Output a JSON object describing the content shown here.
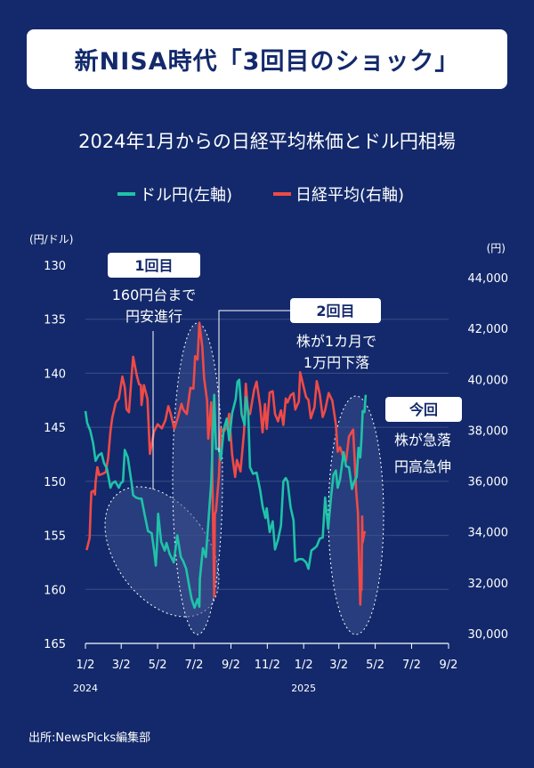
{
  "header": {
    "title": "新NISA時代「3回目のショック」",
    "subtitle": "2024年1月からの日経平均株価とドル円相場"
  },
  "source": "出所:NewsPicks編集部",
  "colors": {
    "background": "#13296b",
    "usdjpy": "#1fc2a8",
    "nikkei": "#ef4a47",
    "gridline": "#3c4f88",
    "callout_bg": "#ffffff",
    "callout_text": "#13296b"
  },
  "chart_data": {
    "type": "line",
    "title": "2024年1月からの日経平均株価とドル円相場",
    "left_unit": "(円/ドル)",
    "right_unit": "(円)",
    "left_axis": {
      "inverted": true,
      "ylim": [
        130,
        165
      ],
      "ticks": [
        "130",
        "135",
        "140",
        "145",
        "150",
        "155",
        "160",
        "165"
      ]
    },
    "right_axis": {
      "ylim": [
        30000,
        44000
      ],
      "ticks": [
        "30,000",
        "32,000",
        "34,000",
        "36,000",
        "38,000",
        "40,000",
        "42,000",
        "44,000"
      ]
    },
    "x_ticks": [
      "1/2",
      "3/2",
      "5/2",
      "7/2",
      "9/2",
      "11/2",
      "1/2",
      "3/2",
      "5/2",
      "7/2",
      "9/2"
    ],
    "year_labels": [
      "2024",
      "2025"
    ],
    "series": [
      {
        "name": "ドル円(左軸)",
        "axis": "left",
        "points": [
          [
            "2024-01-02",
            143.5
          ],
          [
            "2024-01-05",
            144.6
          ],
          [
            "2024-01-10",
            145.3
          ],
          [
            "2024-01-15",
            146.5
          ],
          [
            "2024-01-19",
            148.1
          ],
          [
            "2024-01-24",
            147.6
          ],
          [
            "2024-01-29",
            147.4
          ],
          [
            "2024-02-02",
            148.3
          ],
          [
            "2024-02-07",
            148.8
          ],
          [
            "2024-02-13",
            150.6
          ],
          [
            "2024-02-16",
            150.2
          ],
          [
            "2024-02-21",
            150.0
          ],
          [
            "2024-02-27",
            150.6
          ],
          [
            "2024-03-01",
            150.2
          ],
          [
            "2024-03-05",
            150.0
          ],
          [
            "2024-03-08",
            147.1
          ],
          [
            "2024-03-13",
            147.8
          ],
          [
            "2024-03-19",
            150.0
          ],
          [
            "2024-03-22",
            151.3
          ],
          [
            "2024-03-27",
            151.5
          ],
          [
            "2024-04-01",
            151.6
          ],
          [
            "2024-04-05",
            151.6
          ],
          [
            "2024-04-10",
            153.0
          ],
          [
            "2024-04-16",
            154.6
          ],
          [
            "2024-04-22",
            154.8
          ],
          [
            "2024-04-26",
            156.3
          ],
          [
            "2024-04-29",
            157.8
          ],
          [
            "2024-05-01",
            155.9
          ],
          [
            "2024-05-03",
            153.0
          ],
          [
            "2024-05-08",
            155.6
          ],
          [
            "2024-05-14",
            156.4
          ],
          [
            "2024-05-17",
            155.7
          ],
          [
            "2024-05-22",
            156.7
          ],
          [
            "2024-05-29",
            157.5
          ],
          [
            "2024-06-04",
            155.0
          ],
          [
            "2024-06-10",
            157.0
          ],
          [
            "2024-06-14",
            157.4
          ],
          [
            "2024-06-19",
            158.1
          ],
          [
            "2024-06-24",
            159.7
          ],
          [
            "2024-06-28",
            160.9
          ],
          [
            "2024-07-03",
            161.7
          ],
          [
            "2024-07-08",
            160.9
          ],
          [
            "2024-07-11",
            161.6
          ],
          [
            "2024-07-12",
            159.0
          ],
          [
            "2024-07-17",
            156.2
          ],
          [
            "2024-07-22",
            157.0
          ],
          [
            "2024-07-26",
            153.9
          ],
          [
            "2024-07-31",
            150.0
          ],
          [
            "2024-08-05",
            142.0
          ],
          [
            "2024-08-08",
            147.0
          ],
          [
            "2024-08-13",
            147.0
          ],
          [
            "2024-08-16",
            148.0
          ],
          [
            "2024-08-21",
            145.2
          ],
          [
            "2024-08-26",
            144.2
          ],
          [
            "2024-08-30",
            146.2
          ],
          [
            "2024-09-04",
            143.7
          ],
          [
            "2024-09-10",
            142.4
          ],
          [
            "2024-09-13",
            140.8
          ],
          [
            "2024-09-16",
            140.6
          ],
          [
            "2024-09-20",
            143.8
          ],
          [
            "2024-09-25",
            144.8
          ],
          [
            "2024-09-27",
            142.2
          ],
          [
            "2024-10-01",
            143.6
          ],
          [
            "2024-10-04",
            148.7
          ],
          [
            "2024-10-09",
            149.3
          ],
          [
            "2024-10-15",
            149.2
          ],
          [
            "2024-10-21",
            150.8
          ],
          [
            "2024-10-25",
            152.3
          ],
          [
            "2024-10-30",
            153.4
          ],
          [
            "2024-11-01",
            152.5
          ],
          [
            "2024-11-06",
            154.7
          ],
          [
            "2024-11-11",
            153.7
          ],
          [
            "2024-11-15",
            156.3
          ],
          [
            "2024-11-20",
            155.4
          ],
          [
            "2024-11-25",
            154.1
          ],
          [
            "2024-11-29",
            150.0
          ],
          [
            "2024-12-03",
            149.7
          ],
          [
            "2024-12-06",
            150.0
          ],
          [
            "2024-12-11",
            152.4
          ],
          [
            "2024-12-16",
            153.6
          ],
          [
            "2024-12-19",
            157.4
          ],
          [
            "2024-12-25",
            157.2
          ],
          [
            "2024-12-31",
            157.2
          ],
          [
            "2025-01-06",
            157.5
          ],
          [
            "2025-01-10",
            158.1
          ],
          [
            "2025-01-15",
            156.4
          ],
          [
            "2025-01-20",
            156.2
          ],
          [
            "2025-01-24",
            156.0
          ],
          [
            "2025-01-29",
            155.3
          ],
          [
            "2025-02-03",
            155.2
          ],
          [
            "2025-02-07",
            151.5
          ],
          [
            "2025-02-12",
            154.4
          ],
          [
            "2025-02-17",
            151.4
          ],
          [
            "2025-02-21",
            149.4
          ],
          [
            "2025-02-25",
            149.0
          ],
          [
            "2025-02-28",
            150.6
          ],
          [
            "2025-03-04",
            149.8
          ],
          [
            "2025-03-10",
            147.3
          ],
          [
            "2025-03-14",
            148.6
          ],
          [
            "2025-03-19",
            148.7
          ],
          [
            "2025-03-24",
            150.7
          ],
          [
            "2025-03-28",
            150.0
          ],
          [
            "2025-04-01",
            149.6
          ],
          [
            "2025-04-04",
            146.9
          ],
          [
            "2025-04-07",
            147.8
          ],
          [
            "2025-04-09",
            146.0
          ],
          [
            "2025-04-11",
            143.5
          ],
          [
            "2025-04-14",
            143.6
          ],
          [
            "2025-04-16",
            142.0
          ]
        ]
      },
      {
        "name": "日経平均(右軸)",
        "axis": "right",
        "points": [
          [
            "2024-01-04",
            33288
          ],
          [
            "2024-01-05",
            33377
          ],
          [
            "2024-01-09",
            33763
          ],
          [
            "2024-01-10",
            34441
          ],
          [
            "2024-01-11",
            35049
          ],
          [
            "2024-01-12",
            35577
          ],
          [
            "2024-01-16",
            35619
          ],
          [
            "2024-01-18",
            35466
          ],
          [
            "2024-01-19",
            35963
          ],
          [
            "2024-01-22",
            36546
          ],
          [
            "2024-01-25",
            36236
          ],
          [
            "2024-01-31",
            36287
          ],
          [
            "2024-02-05",
            36354
          ],
          [
            "2024-02-09",
            36897
          ],
          [
            "2024-02-13",
            37963
          ],
          [
            "2024-02-16",
            38487
          ],
          [
            "2024-02-22",
            39098
          ],
          [
            "2024-02-27",
            39239
          ],
          [
            "2024-03-04",
            40109
          ],
          [
            "2024-03-08",
            39688
          ],
          [
            "2024-03-11",
            38820
          ],
          [
            "2024-03-15",
            38708
          ],
          [
            "2024-03-19",
            40003
          ],
          [
            "2024-03-22",
            40888
          ],
          [
            "2024-03-28",
            40168
          ],
          [
            "2024-04-01",
            39803
          ],
          [
            "2024-04-04",
            39773
          ],
          [
            "2024-04-05",
            38992
          ],
          [
            "2024-04-09",
            39773
          ],
          [
            "2024-04-15",
            39232
          ],
          [
            "2024-04-19",
            37068
          ],
          [
            "2024-04-23",
            37552
          ],
          [
            "2024-04-26",
            37934
          ],
          [
            "2024-05-02",
            38236
          ],
          [
            "2024-05-09",
            38073
          ],
          [
            "2024-05-15",
            38385
          ],
          [
            "2024-05-20",
            38946
          ],
          [
            "2024-05-24",
            38646
          ],
          [
            "2024-05-30",
            38054
          ],
          [
            "2024-06-05",
            38490
          ],
          [
            "2024-06-11",
            39038
          ],
          [
            "2024-06-14",
            38814
          ],
          [
            "2024-06-20",
            38633
          ],
          [
            "2024-06-26",
            39667
          ],
          [
            "2024-07-01",
            39631
          ],
          [
            "2024-07-04",
            40913
          ],
          [
            "2024-07-08",
            40780
          ],
          [
            "2024-07-11",
            42224
          ],
          [
            "2024-07-16",
            41275
          ],
          [
            "2024-07-19",
            40063
          ],
          [
            "2024-07-24",
            39155
          ],
          [
            "2024-07-26",
            37667
          ],
          [
            "2024-07-31",
            39101
          ],
          [
            "2024-08-01",
            38126
          ],
          [
            "2024-08-02",
            35909
          ],
          [
            "2024-08-05",
            31458
          ],
          [
            "2024-08-06",
            34675
          ],
          [
            "2024-08-08",
            34831
          ],
          [
            "2024-08-13",
            36232
          ],
          [
            "2024-08-16",
            38062
          ],
          [
            "2024-08-21",
            37951
          ],
          [
            "2024-08-26",
            38110
          ],
          [
            "2024-08-30",
            38647
          ],
          [
            "2024-09-04",
            37047
          ],
          [
            "2024-09-09",
            36159
          ],
          [
            "2024-09-12",
            36833
          ],
          [
            "2024-09-18",
            36380
          ],
          [
            "2024-09-24",
            37940
          ],
          [
            "2024-09-27",
            39829
          ],
          [
            "2024-10-01",
            38651
          ],
          [
            "2024-10-04",
            38635
          ],
          [
            "2024-10-11",
            39605
          ],
          [
            "2024-10-15",
            39910
          ],
          [
            "2024-10-21",
            38954
          ],
          [
            "2024-10-25",
            37913
          ],
          [
            "2024-10-29",
            39027
          ],
          [
            "2024-11-01",
            38053
          ],
          [
            "2024-11-06",
            39480
          ],
          [
            "2024-11-11",
            39533
          ],
          [
            "2024-11-15",
            38642
          ],
          [
            "2024-11-20",
            38352
          ],
          [
            "2024-11-25",
            38780
          ],
          [
            "2024-11-29",
            38208
          ],
          [
            "2024-12-03",
            39248
          ],
          [
            "2024-12-06",
            39091
          ],
          [
            "2024-12-11",
            39372
          ],
          [
            "2024-12-16",
            39457
          ],
          [
            "2024-12-19",
            38813
          ],
          [
            "2024-12-25",
            39130
          ],
          [
            "2024-12-27",
            40281
          ],
          [
            "2025-01-06",
            39307
          ],
          [
            "2025-01-10",
            39190
          ],
          [
            "2025-01-14",
            38474
          ],
          [
            "2025-01-20",
            38902
          ],
          [
            "2025-01-24",
            39931
          ],
          [
            "2025-01-29",
            39414
          ],
          [
            "2025-02-03",
            38520
          ],
          [
            "2025-02-07",
            38787
          ],
          [
            "2025-02-13",
            39461
          ],
          [
            "2025-02-19",
            39164
          ],
          [
            "2025-02-25",
            38237
          ],
          [
            "2025-02-28",
            37155
          ],
          [
            "2025-03-04",
            37331
          ],
          [
            "2025-03-10",
            36887
          ],
          [
            "2025-03-14",
            36790
          ],
          [
            "2025-03-19",
            37751
          ],
          [
            "2025-03-26",
            38027
          ],
          [
            "2025-03-31",
            35617
          ],
          [
            "2025-04-03",
            34735
          ],
          [
            "2025-04-04",
            33780
          ],
          [
            "2025-04-07",
            31136
          ],
          [
            "2025-04-08",
            32013
          ],
          [
            "2025-04-09",
            31714
          ],
          [
            "2025-04-10",
            34609
          ],
          [
            "2025-04-11",
            33586
          ],
          [
            "2025-04-14",
            33982
          ],
          [
            "2025-04-16",
            34000
          ]
        ]
      }
    ],
    "annotations": [
      {
        "tag": "1回目",
        "text_lines": [
          "160円台まで",
          "円安進行"
        ]
      },
      {
        "tag": "2回目",
        "text_lines": [
          "株が1カ月で",
          "1万円下落"
        ]
      },
      {
        "tag": "今回",
        "text_lines": [
          "株が急落",
          "円高急伸"
        ]
      }
    ]
  }
}
